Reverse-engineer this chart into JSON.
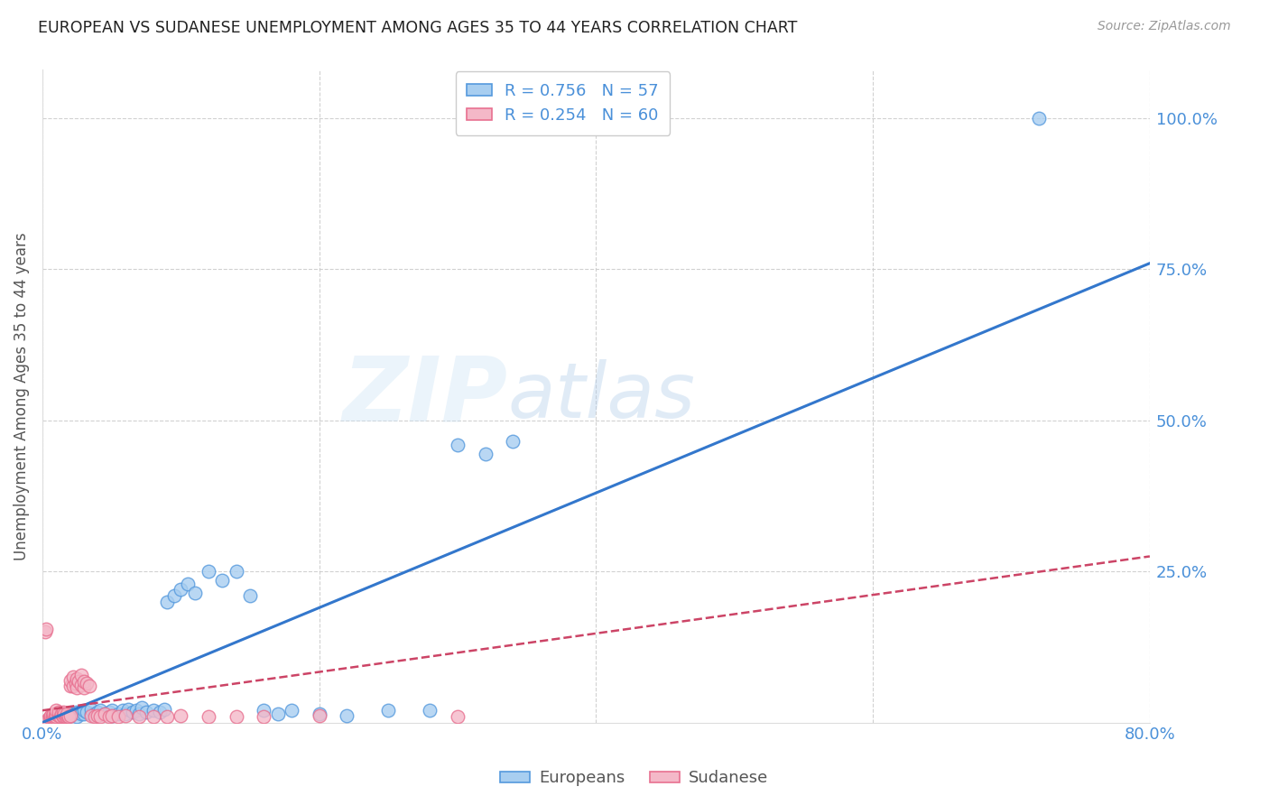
{
  "title": "EUROPEAN VS SUDANESE UNEMPLOYMENT AMONG AGES 35 TO 44 YEARS CORRELATION CHART",
  "source": "Source: ZipAtlas.com",
  "ylabel": "Unemployment Among Ages 35 to 44 years",
  "xlim": [
    0.0,
    0.8
  ],
  "ylim": [
    0.0,
    1.08
  ],
  "xticks": [
    0.0,
    0.2,
    0.4,
    0.6,
    0.8
  ],
  "xticklabels": [
    "0.0%",
    "",
    "",
    "",
    "80.0%"
  ],
  "yticks": [
    0.25,
    0.5,
    0.75,
    1.0
  ],
  "yticklabels": [
    "25.0%",
    "50.0%",
    "75.0%",
    "100.0%"
  ],
  "european_R": "0.756",
  "european_N": "57",
  "sudanese_R": "0.254",
  "sudanese_N": "60",
  "european_color": "#a8cef0",
  "sudanese_color": "#f4b8c8",
  "european_edge": "#5599dd",
  "sudanese_edge": "#e87090",
  "trendline_european_color": "#3377cc",
  "trendline_sudanese_color": "#cc4466",
  "eu_trend_x": [
    0.0,
    0.8
  ],
  "eu_trend_y": [
    0.0,
    0.76
  ],
  "su_trend_x": [
    0.0,
    0.8
  ],
  "su_trend_y": [
    0.02,
    0.275
  ],
  "watermark_zip": "ZIP",
  "watermark_atlas": "atlas",
  "european_scatter": [
    [
      0.005,
      0.005
    ],
    [
      0.008,
      0.008
    ],
    [
      0.01,
      0.01
    ],
    [
      0.012,
      0.012
    ],
    [
      0.015,
      0.008
    ],
    [
      0.015,
      0.015
    ],
    [
      0.018,
      0.01
    ],
    [
      0.02,
      0.012
    ],
    [
      0.022,
      0.015
    ],
    [
      0.025,
      0.01
    ],
    [
      0.025,
      0.018
    ],
    [
      0.028,
      0.015
    ],
    [
      0.03,
      0.015
    ],
    [
      0.03,
      0.02
    ],
    [
      0.032,
      0.018
    ],
    [
      0.035,
      0.015
    ],
    [
      0.035,
      0.022
    ],
    [
      0.038,
      0.015
    ],
    [
      0.04,
      0.012
    ],
    [
      0.04,
      0.018
    ],
    [
      0.042,
      0.02
    ],
    [
      0.045,
      0.015
    ],
    [
      0.048,
      0.018
    ],
    [
      0.05,
      0.012
    ],
    [
      0.05,
      0.02
    ],
    [
      0.055,
      0.015
    ],
    [
      0.058,
      0.02
    ],
    [
      0.06,
      0.015
    ],
    [
      0.062,
      0.022
    ],
    [
      0.065,
      0.018
    ],
    [
      0.068,
      0.02
    ],
    [
      0.07,
      0.015
    ],
    [
      0.072,
      0.025
    ],
    [
      0.075,
      0.018
    ],
    [
      0.08,
      0.02
    ],
    [
      0.085,
      0.018
    ],
    [
      0.088,
      0.022
    ],
    [
      0.09,
      0.2
    ],
    [
      0.095,
      0.21
    ],
    [
      0.1,
      0.22
    ],
    [
      0.105,
      0.23
    ],
    [
      0.11,
      0.215
    ],
    [
      0.12,
      0.25
    ],
    [
      0.13,
      0.235
    ],
    [
      0.14,
      0.25
    ],
    [
      0.15,
      0.21
    ],
    [
      0.16,
      0.02
    ],
    [
      0.17,
      0.015
    ],
    [
      0.18,
      0.02
    ],
    [
      0.2,
      0.015
    ],
    [
      0.22,
      0.012
    ],
    [
      0.25,
      0.02
    ],
    [
      0.28,
      0.02
    ],
    [
      0.3,
      0.46
    ],
    [
      0.32,
      0.445
    ],
    [
      0.34,
      0.465
    ],
    [
      0.72,
      1.0
    ]
  ],
  "sudanese_scatter": [
    [
      0.002,
      0.15
    ],
    [
      0.003,
      0.155
    ],
    [
      0.004,
      0.005
    ],
    [
      0.005,
      0.008
    ],
    [
      0.006,
      0.01
    ],
    [
      0.006,
      0.012
    ],
    [
      0.007,
      0.008
    ],
    [
      0.007,
      0.012
    ],
    [
      0.008,
      0.01
    ],
    [
      0.008,
      0.015
    ],
    [
      0.009,
      0.008
    ],
    [
      0.009,
      0.012
    ],
    [
      0.01,
      0.01
    ],
    [
      0.01,
      0.015
    ],
    [
      0.01,
      0.02
    ],
    [
      0.012,
      0.012
    ],
    [
      0.012,
      0.018
    ],
    [
      0.013,
      0.01
    ],
    [
      0.014,
      0.015
    ],
    [
      0.015,
      0.01
    ],
    [
      0.015,
      0.012
    ],
    [
      0.015,
      0.018
    ],
    [
      0.016,
      0.015
    ],
    [
      0.017,
      0.01
    ],
    [
      0.018,
      0.012
    ],
    [
      0.018,
      0.015
    ],
    [
      0.019,
      0.01
    ],
    [
      0.02,
      0.012
    ],
    [
      0.02,
      0.06
    ],
    [
      0.02,
      0.07
    ],
    [
      0.022,
      0.06
    ],
    [
      0.022,
      0.075
    ],
    [
      0.024,
      0.065
    ],
    [
      0.025,
      0.058
    ],
    [
      0.025,
      0.072
    ],
    [
      0.026,
      0.068
    ],
    [
      0.028,
      0.062
    ],
    [
      0.028,
      0.078
    ],
    [
      0.03,
      0.058
    ],
    [
      0.03,
      0.068
    ],
    [
      0.032,
      0.065
    ],
    [
      0.034,
      0.06
    ],
    [
      0.035,
      0.012
    ],
    [
      0.038,
      0.01
    ],
    [
      0.04,
      0.012
    ],
    [
      0.042,
      0.01
    ],
    [
      0.045,
      0.015
    ],
    [
      0.048,
      0.01
    ],
    [
      0.05,
      0.012
    ],
    [
      0.055,
      0.01
    ],
    [
      0.06,
      0.012
    ],
    [
      0.07,
      0.01
    ],
    [
      0.08,
      0.01
    ],
    [
      0.09,
      0.01
    ],
    [
      0.1,
      0.012
    ],
    [
      0.12,
      0.01
    ],
    [
      0.14,
      0.01
    ],
    [
      0.16,
      0.01
    ],
    [
      0.2,
      0.012
    ],
    [
      0.3,
      0.01
    ]
  ],
  "background_color": "#ffffff",
  "grid_color": "#cccccc",
  "title_color": "#222222",
  "axis_label_color": "#555555",
  "right_tick_color": "#4a90d9",
  "legend_text_color": "#4a90d9"
}
